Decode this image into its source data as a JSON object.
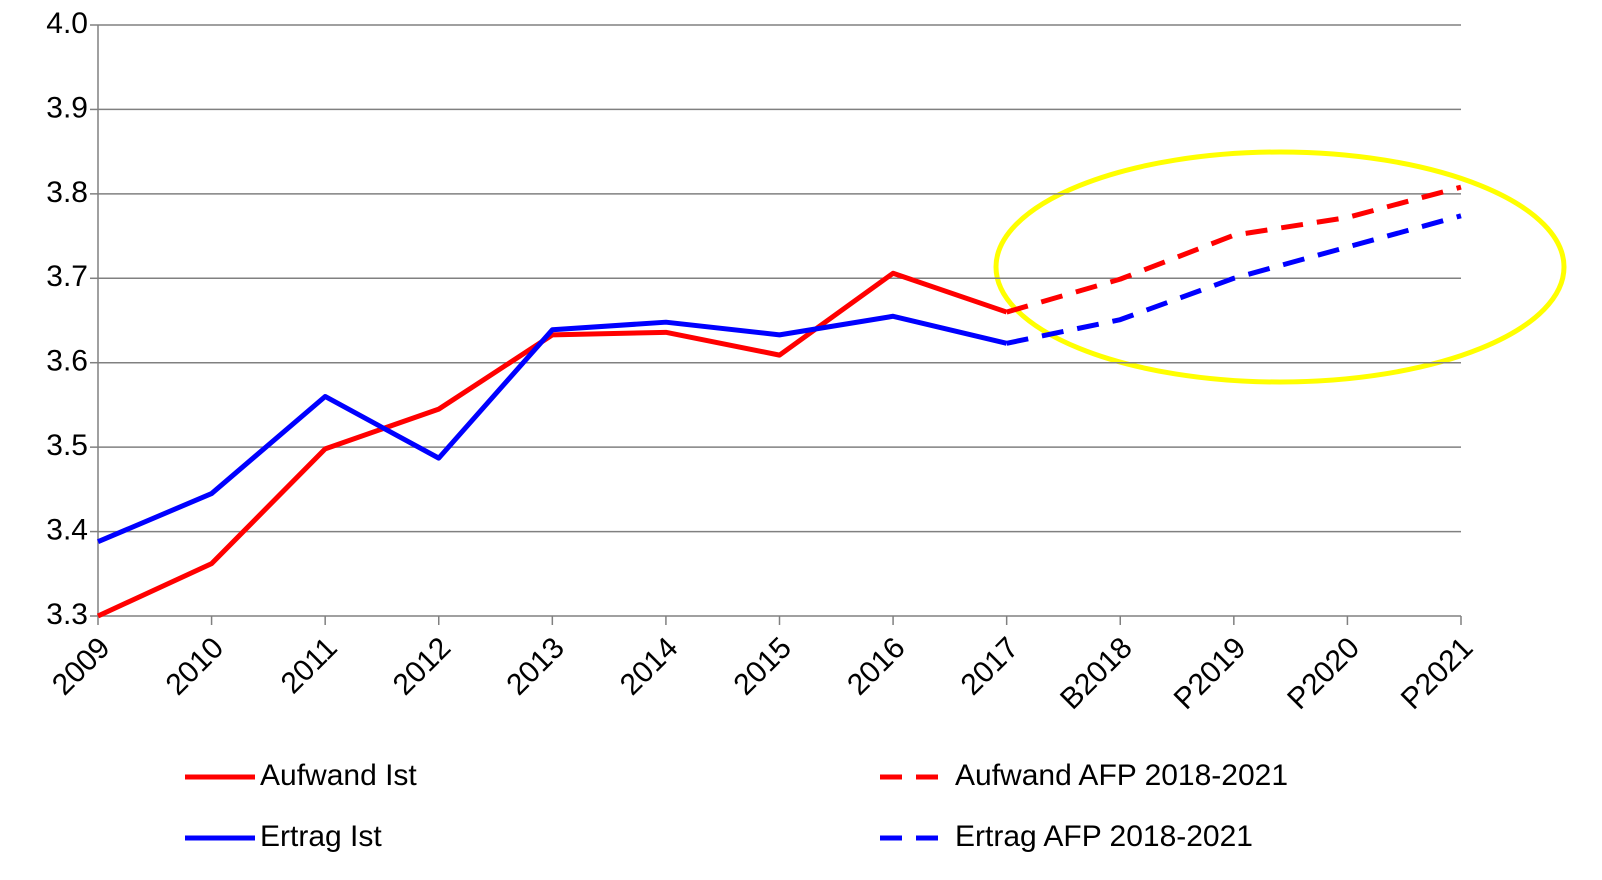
{
  "chart_data": {
    "type": "line",
    "categories": [
      "2009",
      "2010",
      "2011",
      "2012",
      "2013",
      "2014",
      "2015",
      "2016",
      "2017",
      "B2018",
      "P2019",
      "P2020",
      "P2021"
    ],
    "series": [
      {
        "name": "Aufwand Ist",
        "color": "#ff0000",
        "dashed": false,
        "values": [
          3.3,
          3.362,
          3.498,
          3.545,
          3.633,
          3.636,
          3.609,
          3.706,
          3.66,
          null,
          null,
          null,
          null
        ]
      },
      {
        "name": "Ertrag Ist",
        "color": "#0000ff",
        "dashed": false,
        "values": [
          3.388,
          3.445,
          3.56,
          3.487,
          3.639,
          3.648,
          3.633,
          3.655,
          3.623,
          null,
          null,
          null,
          null
        ]
      },
      {
        "name": "Aufwand AFP 2018-2021",
        "color": "#ff0000",
        "dashed": true,
        "values": [
          null,
          null,
          null,
          null,
          null,
          null,
          null,
          null,
          3.66,
          3.699,
          3.751,
          3.772,
          3.808
        ]
      },
      {
        "name": "Ertrag AFP 2018-2021",
        "color": "#0000ff",
        "dashed": true,
        "values": [
          null,
          null,
          null,
          null,
          null,
          null,
          null,
          null,
          3.623,
          3.651,
          3.7,
          3.737,
          3.774
        ]
      }
    ],
    "ylim": [
      3.3,
      4.0
    ],
    "yticks": [
      3.3,
      3.4,
      3.5,
      3.6,
      3.7,
      3.8,
      3.9,
      {
        "value": 4.0,
        "label": "4.0"
      }
    ],
    "grid": true
  }
}
